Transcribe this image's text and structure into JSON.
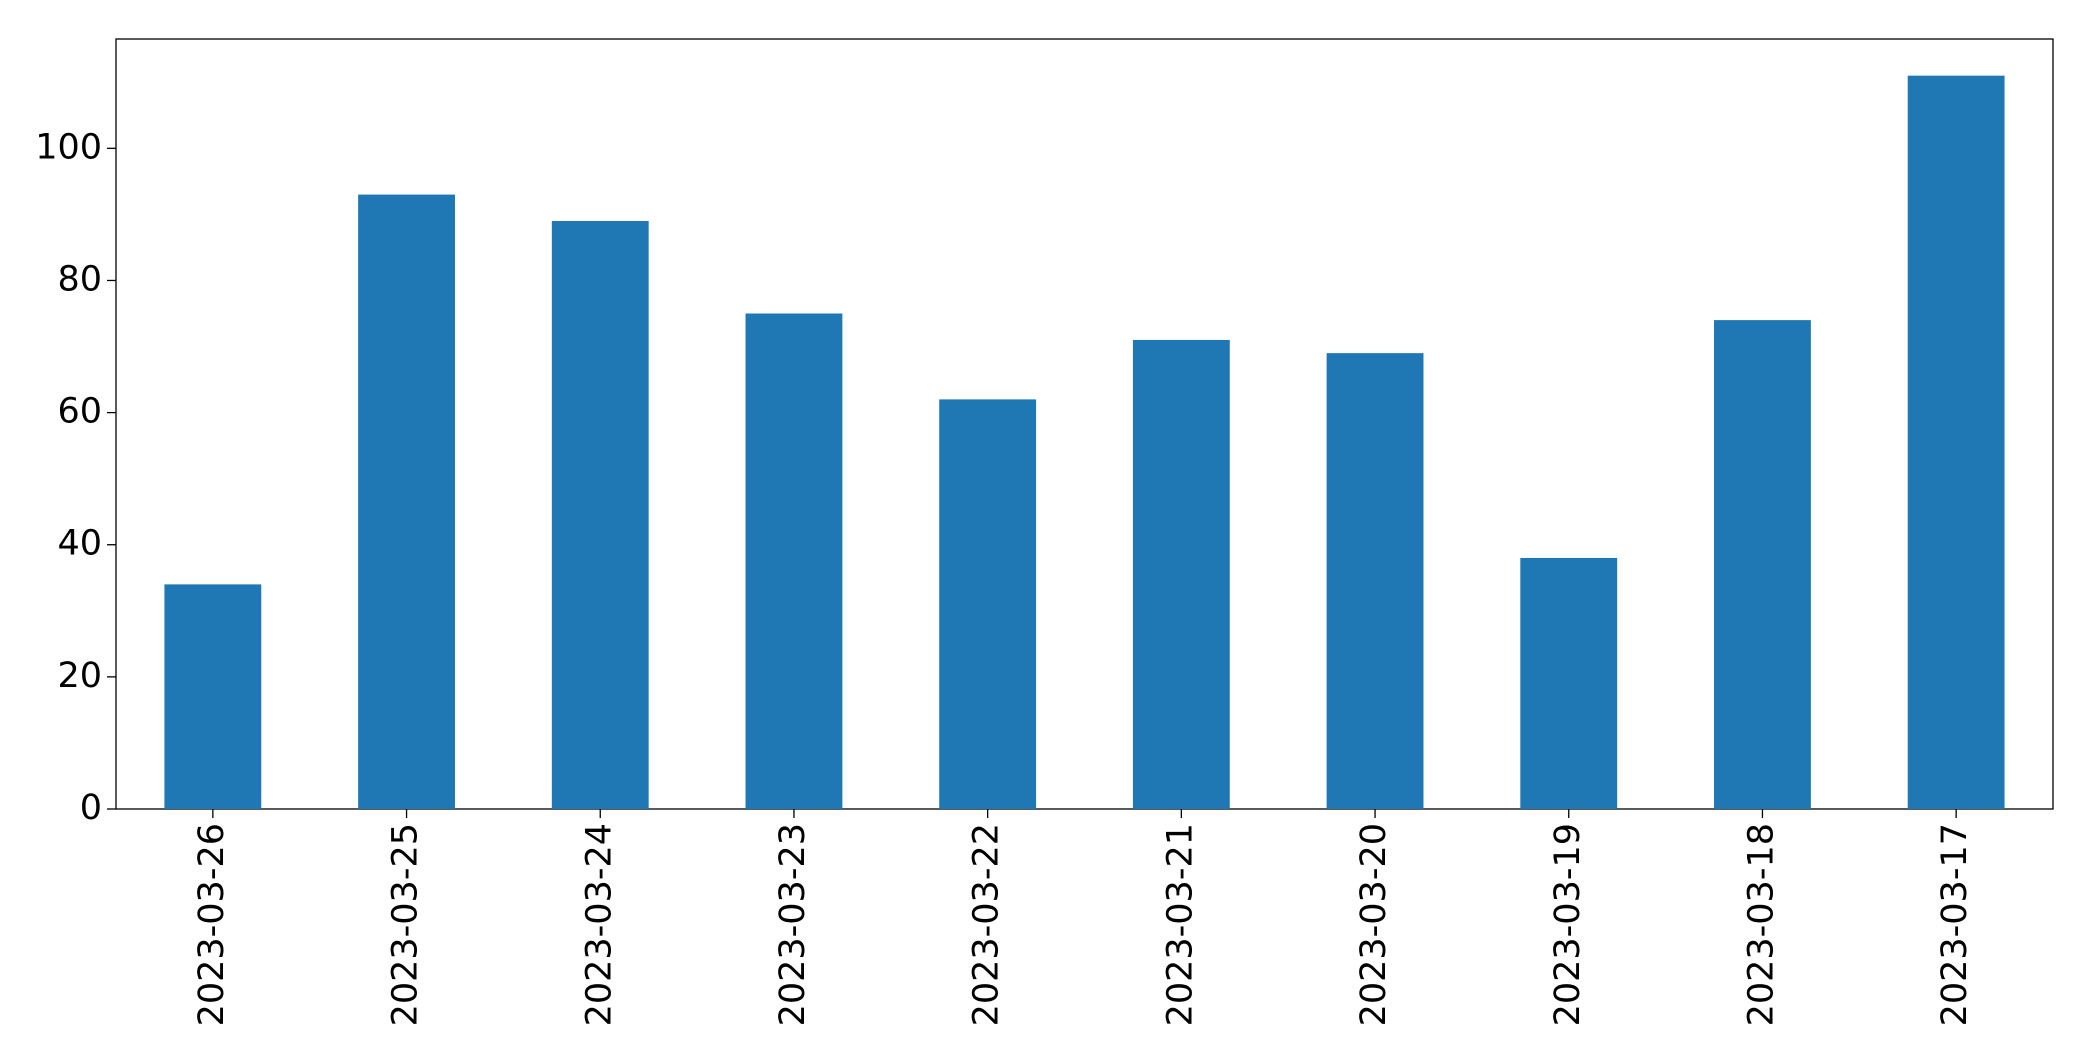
{
  "chart_data": {
    "type": "bar",
    "categories": [
      "2023-03-26",
      "2023-03-25",
      "2023-03-24",
      "2023-03-23",
      "2023-03-22",
      "2023-03-21",
      "2023-03-20",
      "2023-03-19",
      "2023-03-18",
      "2023-03-17"
    ],
    "values": [
      34,
      93,
      89,
      75,
      62,
      71,
      69,
      38,
      74,
      111
    ],
    "color": "#1f77b4",
    "ylim": [
      0,
      116.55
    ],
    "yticks": [
      0,
      20,
      40,
      60,
      80,
      100
    ],
    "grid": false
  }
}
